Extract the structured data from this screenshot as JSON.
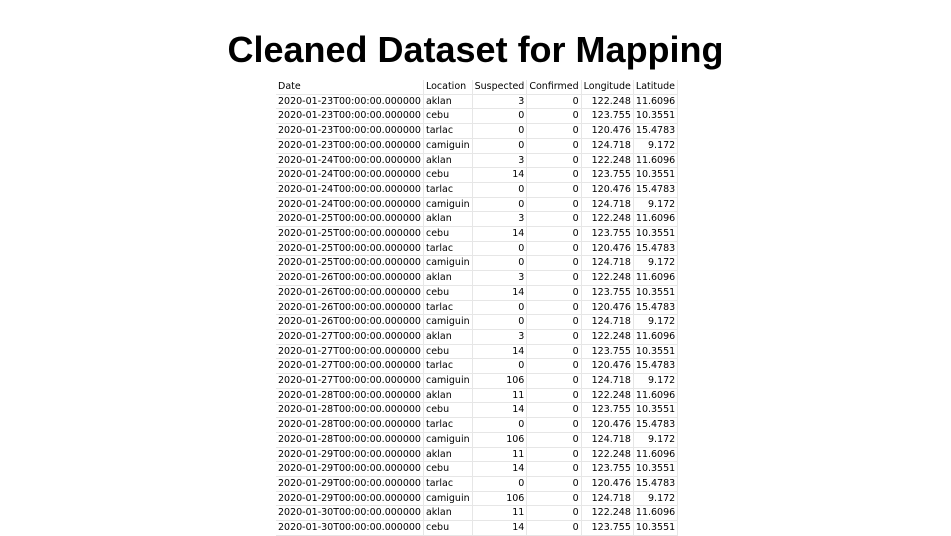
{
  "title": "Cleaned Dataset for Mapping",
  "table": {
    "headers": [
      "Date",
      "Location",
      "Suspected",
      "Confirmed",
      "Longitude",
      "Latitude"
    ],
    "rows": [
      [
        "2020-01-23T00:00:00.000000",
        "aklan",
        "3",
        "0",
        "122.248",
        "11.6096"
      ],
      [
        "2020-01-23T00:00:00.000000",
        "cebu",
        "0",
        "0",
        "123.755",
        "10.3551"
      ],
      [
        "2020-01-23T00:00:00.000000",
        "tarlac",
        "0",
        "0",
        "120.476",
        "15.4783"
      ],
      [
        "2020-01-23T00:00:00.000000",
        "camiguin",
        "0",
        "0",
        "124.718",
        "9.172"
      ],
      [
        "2020-01-24T00:00:00.000000",
        "aklan",
        "3",
        "0",
        "122.248",
        "11.6096"
      ],
      [
        "2020-01-24T00:00:00.000000",
        "cebu",
        "14",
        "0",
        "123.755",
        "10.3551"
      ],
      [
        "2020-01-24T00:00:00.000000",
        "tarlac",
        "0",
        "0",
        "120.476",
        "15.4783"
      ],
      [
        "2020-01-24T00:00:00.000000",
        "camiguin",
        "0",
        "0",
        "124.718",
        "9.172"
      ],
      [
        "2020-01-25T00:00:00.000000",
        "aklan",
        "3",
        "0",
        "122.248",
        "11.6096"
      ],
      [
        "2020-01-25T00:00:00.000000",
        "cebu",
        "14",
        "0",
        "123.755",
        "10.3551"
      ],
      [
        "2020-01-25T00:00:00.000000",
        "tarlac",
        "0",
        "0",
        "120.476",
        "15.4783"
      ],
      [
        "2020-01-25T00:00:00.000000",
        "camiguin",
        "0",
        "0",
        "124.718",
        "9.172"
      ],
      [
        "2020-01-26T00:00:00.000000",
        "aklan",
        "3",
        "0",
        "122.248",
        "11.6096"
      ],
      [
        "2020-01-26T00:00:00.000000",
        "cebu",
        "14",
        "0",
        "123.755",
        "10.3551"
      ],
      [
        "2020-01-26T00:00:00.000000",
        "tarlac",
        "0",
        "0",
        "120.476",
        "15.4783"
      ],
      [
        "2020-01-26T00:00:00.000000",
        "camiguin",
        "0",
        "0",
        "124.718",
        "9.172"
      ],
      [
        "2020-01-27T00:00:00.000000",
        "aklan",
        "3",
        "0",
        "122.248",
        "11.6096"
      ],
      [
        "2020-01-27T00:00:00.000000",
        "cebu",
        "14",
        "0",
        "123.755",
        "10.3551"
      ],
      [
        "2020-01-27T00:00:00.000000",
        "tarlac",
        "0",
        "0",
        "120.476",
        "15.4783"
      ],
      [
        "2020-01-27T00:00:00.000000",
        "camiguin",
        "106",
        "0",
        "124.718",
        "9.172"
      ],
      [
        "2020-01-28T00:00:00.000000",
        "aklan",
        "11",
        "0",
        "122.248",
        "11.6096"
      ],
      [
        "2020-01-28T00:00:00.000000",
        "cebu",
        "14",
        "0",
        "123.755",
        "10.3551"
      ],
      [
        "2020-01-28T00:00:00.000000",
        "tarlac",
        "0",
        "0",
        "120.476",
        "15.4783"
      ],
      [
        "2020-01-28T00:00:00.000000",
        "camiguin",
        "106",
        "0",
        "124.718",
        "9.172"
      ],
      [
        "2020-01-29T00:00:00.000000",
        "aklan",
        "11",
        "0",
        "122.248",
        "11.6096"
      ],
      [
        "2020-01-29T00:00:00.000000",
        "cebu",
        "14",
        "0",
        "123.755",
        "10.3551"
      ],
      [
        "2020-01-29T00:00:00.000000",
        "tarlac",
        "0",
        "0",
        "120.476",
        "15.4783"
      ],
      [
        "2020-01-29T00:00:00.000000",
        "camiguin",
        "106",
        "0",
        "124.718",
        "9.172"
      ],
      [
        "2020-01-30T00:00:00.000000",
        "aklan",
        "11",
        "0",
        "122.248",
        "11.6096"
      ],
      [
        "2020-01-30T00:00:00.000000",
        "cebu",
        "14",
        "0",
        "123.755",
        "10.3551"
      ]
    ]
  }
}
